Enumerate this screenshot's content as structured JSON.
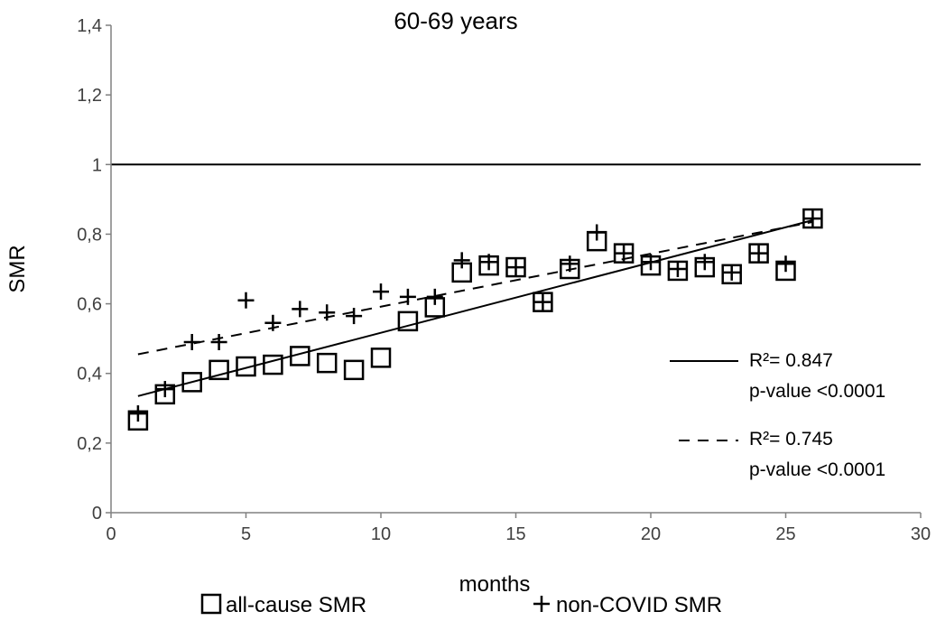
{
  "chart_data": {
    "type": "scatter",
    "title": "60-69 years",
    "xlabel": "months",
    "ylabel": "SMR",
    "xlim": [
      0,
      30
    ],
    "ylim": [
      0,
      1.4
    ],
    "x_ticks": [
      0,
      5,
      10,
      15,
      20,
      25,
      30
    ],
    "x_tick_labels": [
      "0",
      "5",
      "10",
      "15",
      "20",
      "25",
      "30"
    ],
    "y_ticks": [
      0,
      0.2,
      0.4,
      0.6,
      0.8,
      1,
      1.2,
      1.4
    ],
    "y_tick_labels": [
      "0",
      "0,2",
      "0,4",
      "0,6",
      "0,8",
      "1",
      "1,2",
      "1,4"
    ],
    "reference_line": {
      "y": 1
    },
    "series": [
      {
        "name": "all-cause SMR",
        "marker": "square",
        "x": [
          1,
          2,
          3,
          4,
          5,
          6,
          7,
          8,
          9,
          10,
          11,
          12,
          13,
          14,
          15,
          16,
          17,
          18,
          19,
          20,
          21,
          22,
          23,
          24,
          25,
          26
        ],
        "y": [
          0.265,
          0.34,
          0.375,
          0.41,
          0.42,
          0.425,
          0.45,
          0.43,
          0.41,
          0.445,
          0.55,
          0.59,
          0.69,
          0.71,
          0.705,
          0.605,
          0.7,
          0.78,
          0.745,
          0.71,
          0.695,
          0.705,
          0.685,
          0.745,
          0.695,
          0.845
        ],
        "trend": {
          "style": "solid",
          "x": [
            1,
            26
          ],
          "y": [
            0.335,
            0.84
          ]
        }
      },
      {
        "name": "non-COVID SMR",
        "marker": "plus",
        "x": [
          1,
          2,
          3,
          4,
          5,
          6,
          7,
          8,
          9,
          10,
          11,
          12,
          13,
          14,
          15,
          16,
          17,
          18,
          19,
          20,
          21,
          22,
          23,
          24,
          25,
          26
        ],
        "y": [
          0.285,
          0.355,
          0.49,
          0.49,
          0.61,
          0.545,
          0.585,
          0.575,
          0.565,
          0.635,
          0.62,
          0.62,
          0.725,
          0.72,
          0.705,
          0.605,
          0.715,
          0.805,
          0.745,
          0.72,
          0.7,
          0.72,
          0.69,
          0.745,
          0.715,
          0.845
        ],
        "trend": {
          "style": "dashed",
          "x": [
            1,
            26
          ],
          "y": [
            0.455,
            0.835
          ]
        }
      }
    ],
    "annotations": [
      {
        "style": "solid",
        "r2_label": "R²= 0.847",
        "p_label": "p-value <0.0001"
      },
      {
        "style": "dashed",
        "r2_label": "R²= 0.745",
        "p_label": "p-value <0.0001"
      }
    ],
    "legend_placement": "bottom"
  }
}
